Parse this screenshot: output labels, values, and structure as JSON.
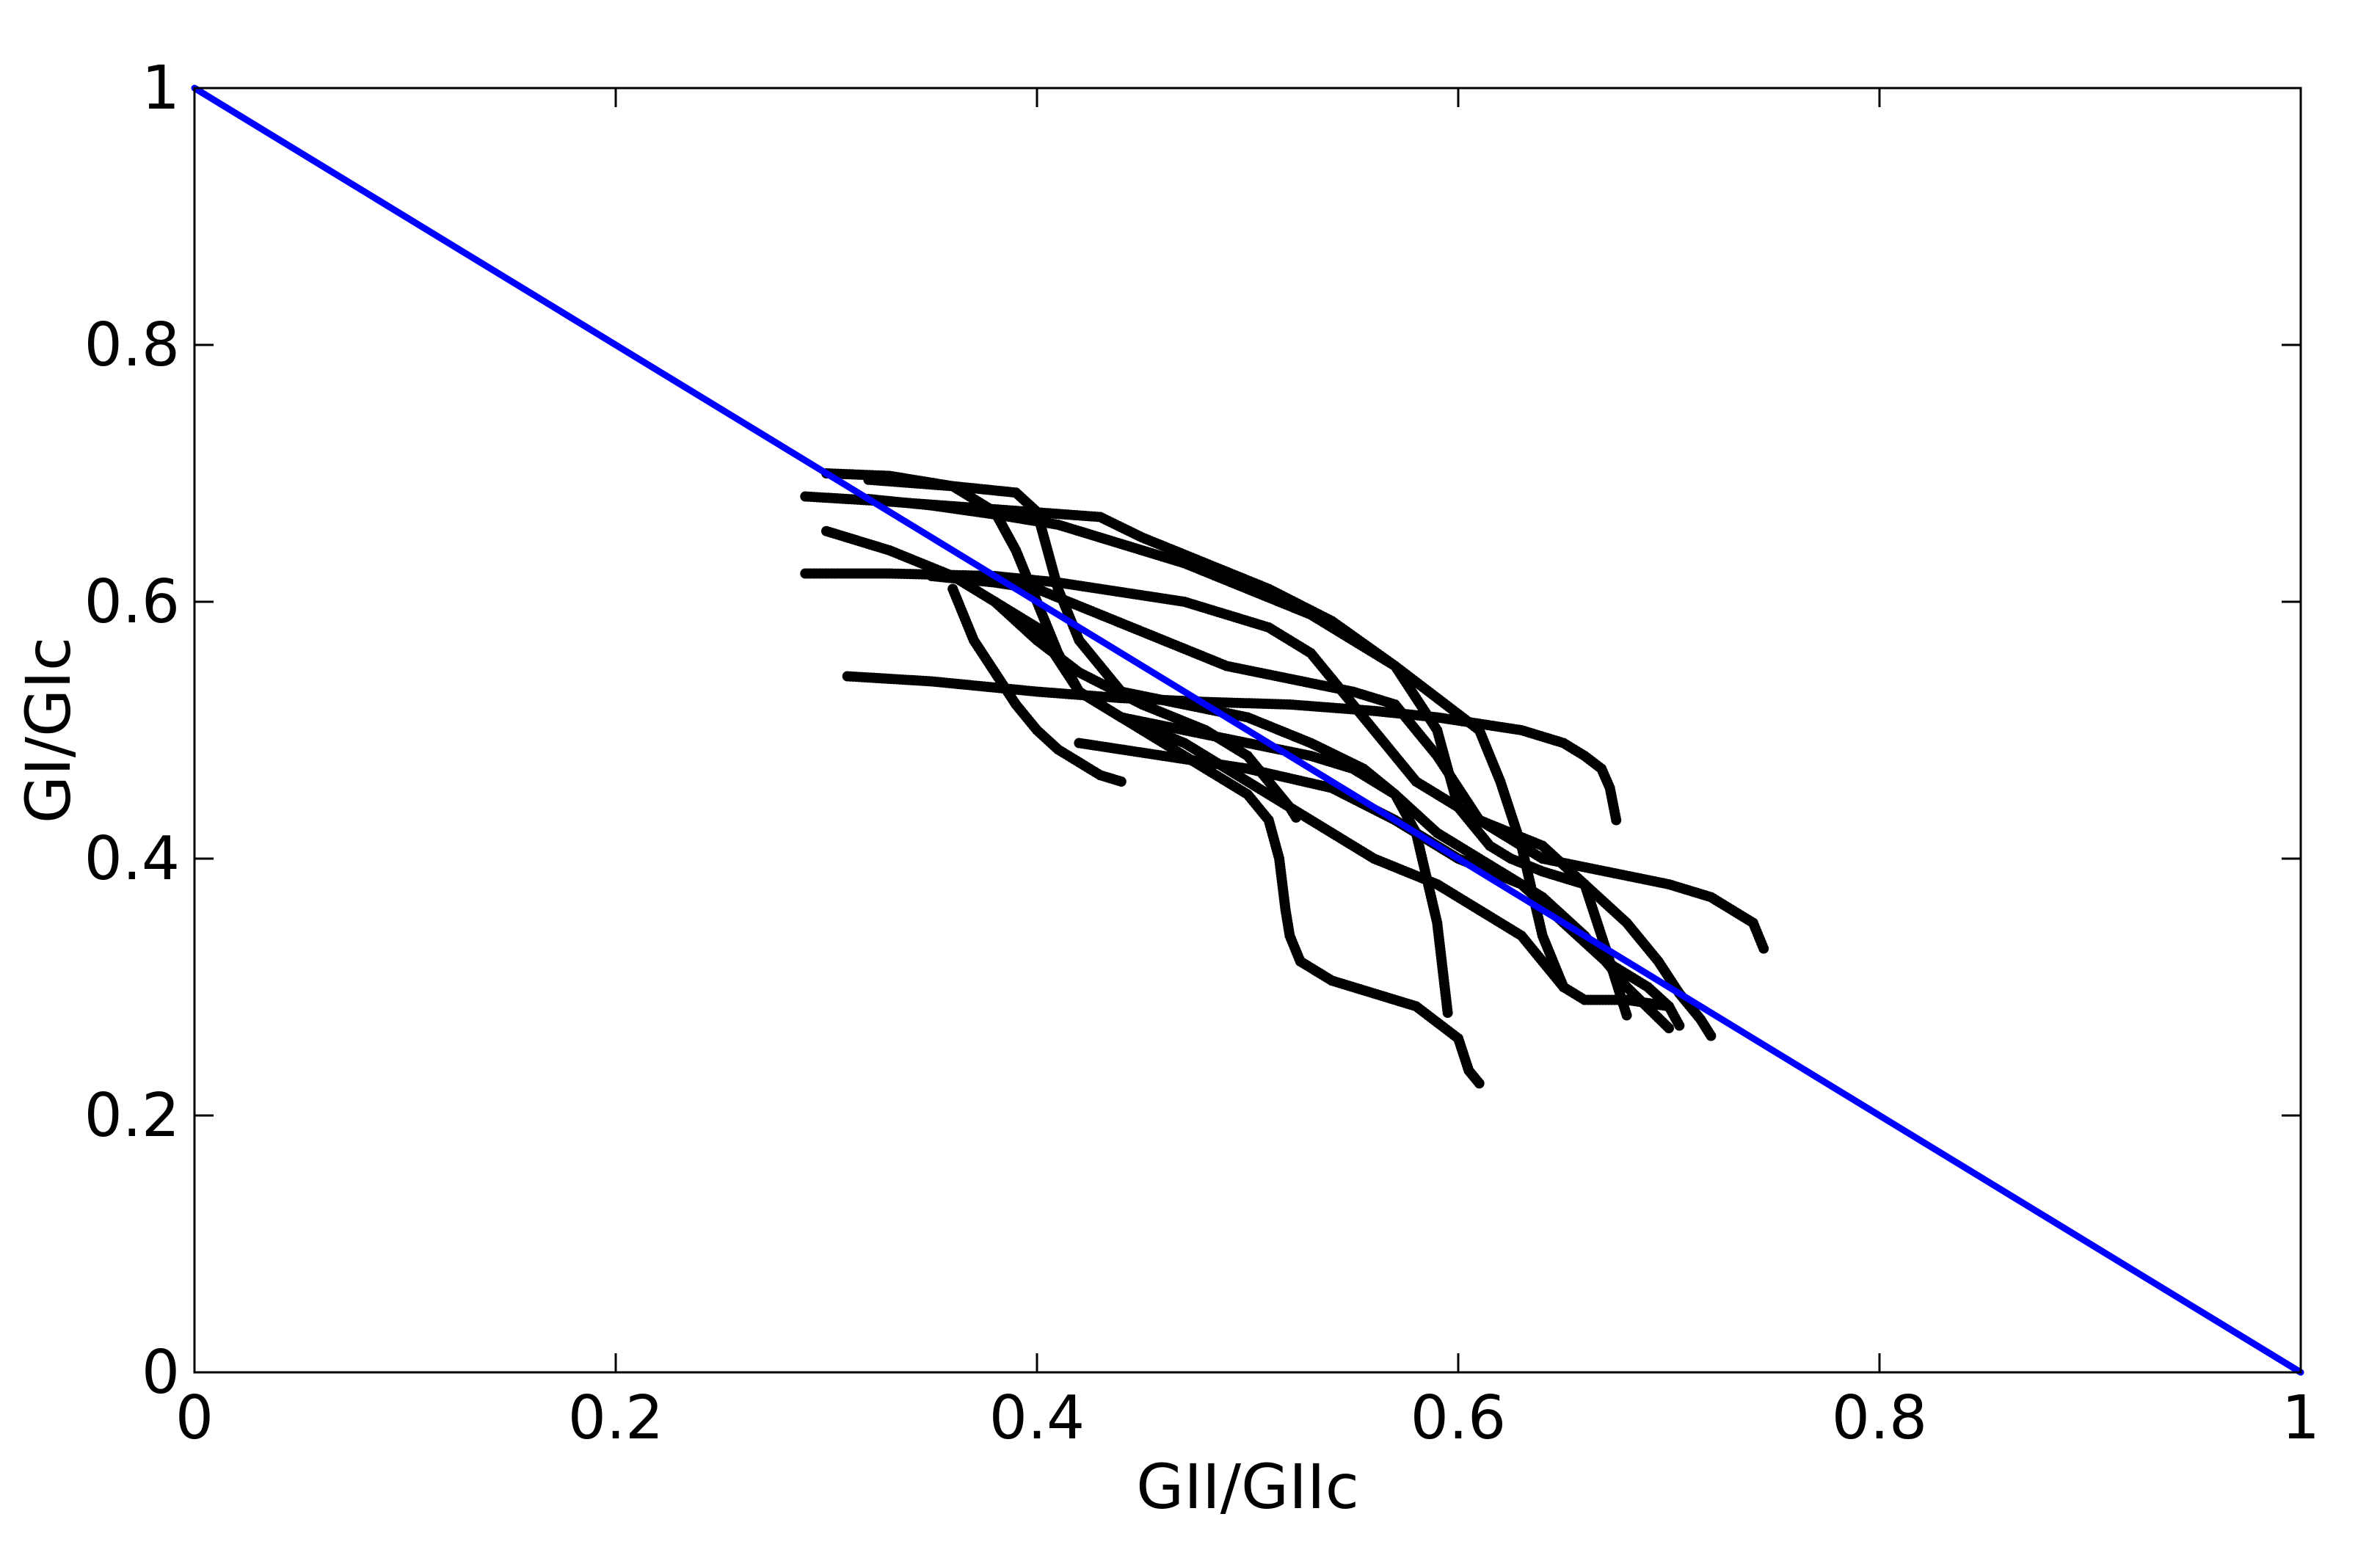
{
  "chart_data": {
    "type": "scatter",
    "title": "",
    "xlabel": "GII/GIIc",
    "ylabel": "GI/GIc",
    "xlim": [
      0,
      1
    ],
    "ylim": [
      0,
      1
    ],
    "x_ticks": [
      "0",
      "0.2",
      "0.4",
      "0.6",
      "0.8",
      "1"
    ],
    "y_ticks": [
      "0",
      "0.2",
      "0.4",
      "0.6",
      "0.8",
      "1"
    ],
    "grid": false,
    "legend": "none",
    "colors": {
      "reference_line": "#0000ff",
      "data_points": "#000000"
    },
    "reference_line": {
      "x": [
        0,
        1
      ],
      "y": [
        1,
        0
      ]
    },
    "series": [
      {
        "x": [
          0.29,
          0.33,
          0.38,
          0.43,
          0.45,
          0.48,
          0.51,
          0.54,
          0.57,
          0.59,
          0.6,
          0.615,
          0.625,
          0.64,
          0.66,
          0.68,
          0.695,
          0.705,
          0.715,
          0.72
        ],
        "y": [
          0.682,
          0.678,
          0.672,
          0.666,
          0.65,
          0.63,
          0.61,
          0.585,
          0.55,
          0.5,
          0.44,
          0.41,
          0.4,
          0.39,
          0.38,
          0.35,
          0.32,
          0.295,
          0.275,
          0.262
        ]
      },
      {
        "x": [
          0.3,
          0.33,
          0.36,
          0.38,
          0.39,
          0.4,
          0.41,
          0.42,
          0.44,
          0.47,
          0.5,
          0.53,
          0.55,
          0.57,
          0.59,
          0.61,
          0.62,
          0.64,
          0.66,
          0.68,
          0.7
        ],
        "y": [
          0.7,
          0.698,
          0.69,
          0.67,
          0.64,
          0.6,
          0.56,
          0.53,
          0.51,
          0.5,
          0.49,
          0.48,
          0.47,
          0.45,
          0.42,
          0.4,
          0.39,
          0.37,
          0.34,
          0.3,
          0.268
        ]
      },
      {
        "x": [
          0.29,
          0.33,
          0.38,
          0.41,
          0.43,
          0.45,
          0.47,
          0.49,
          0.51,
          0.53,
          0.54,
          0.56,
          0.58,
          0.61,
          0.64,
          0.66,
          0.67,
          0.68
        ],
        "y": [
          0.622,
          0.622,
          0.62,
          0.615,
          0.61,
          0.605,
          0.6,
          0.59,
          0.58,
          0.56,
          0.54,
          0.5,
          0.46,
          0.43,
          0.41,
          0.38,
          0.33,
          0.278
        ]
      },
      {
        "x": [
          0.3,
          0.33,
          0.36,
          0.38,
          0.4,
          0.42,
          0.45,
          0.48,
          0.5,
          0.51,
          0.515,
          0.518,
          0.52,
          0.525,
          0.54,
          0.58,
          0.6,
          0.605,
          0.61
        ],
        "y": [
          0.655,
          0.64,
          0.62,
          0.6,
          0.58,
          0.53,
          0.5,
          0.47,
          0.45,
          0.43,
          0.4,
          0.36,
          0.34,
          0.32,
          0.305,
          0.285,
          0.26,
          0.235,
          0.225
        ]
      },
      {
        "x": [
          0.32,
          0.36,
          0.39,
          0.4,
          0.405,
          0.41,
          0.42,
          0.44,
          0.47,
          0.5,
          0.53,
          0.555,
          0.57,
          0.58,
          0.59,
          0.595
        ],
        "y": [
          0.695,
          0.69,
          0.685,
          0.67,
          0.64,
          0.61,
          0.57,
          0.53,
          0.52,
          0.51,
          0.49,
          0.47,
          0.45,
          0.42,
          0.35,
          0.28
        ]
      },
      {
        "x": [
          0.31,
          0.35,
          0.4,
          0.44,
          0.48,
          0.52,
          0.56,
          0.59,
          0.61,
          0.63,
          0.65,
          0.66,
          0.668,
          0.672,
          0.675
        ],
        "y": [
          0.542,
          0.538,
          0.53,
          0.525,
          0.522,
          0.52,
          0.515,
          0.51,
          0.505,
          0.5,
          0.49,
          0.48,
          0.47,
          0.455,
          0.43
        ]
      },
      {
        "x": [
          0.32,
          0.35,
          0.38,
          0.41,
          0.44,
          0.47,
          0.5,
          0.53,
          0.55,
          0.57,
          0.59,
          0.61,
          0.62,
          0.63,
          0.64,
          0.65
        ],
        "y": [
          0.68,
          0.675,
          0.668,
          0.66,
          0.645,
          0.63,
          0.61,
          0.59,
          0.57,
          0.55,
          0.525,
          0.5,
          0.46,
          0.41,
          0.34,
          0.3
        ]
      },
      {
        "x": [
          0.35,
          0.38,
          0.4,
          0.43,
          0.46,
          0.49,
          0.52,
          0.55,
          0.57,
          0.59,
          0.61,
          0.64,
          0.67,
          0.7,
          0.72,
          0.74,
          0.745
        ],
        "y": [
          0.62,
          0.615,
          0.61,
          0.59,
          0.57,
          0.55,
          0.54,
          0.53,
          0.52,
          0.48,
          0.43,
          0.4,
          0.39,
          0.38,
          0.37,
          0.35,
          0.33
        ]
      },
      {
        "x": [
          0.36,
          0.37,
          0.38,
          0.39,
          0.4,
          0.41,
          0.42,
          0.43,
          0.44
        ],
        "y": [
          0.61,
          0.57,
          0.545,
          0.52,
          0.5,
          0.485,
          0.475,
          0.465,
          0.46
        ]
      },
      {
        "x": [
          0.38,
          0.4,
          0.42,
          0.45,
          0.48,
          0.5,
          0.51,
          0.515,
          0.52,
          0.523
        ],
        "y": [
          0.6,
          0.57,
          0.545,
          0.52,
          0.5,
          0.48,
          0.46,
          0.45,
          0.44,
          0.432
        ]
      },
      {
        "x": [
          0.42,
          0.46,
          0.5,
          0.54,
          0.57,
          0.6,
          0.63,
          0.65,
          0.67,
          0.69,
          0.7,
          0.705
        ],
        "y": [
          0.49,
          0.48,
          0.47,
          0.455,
          0.43,
          0.4,
          0.38,
          0.35,
          0.32,
          0.3,
          0.285,
          0.27
        ]
      },
      {
        "x": [
          0.44,
          0.47,
          0.5,
          0.53,
          0.56,
          0.59,
          0.61,
          0.63,
          0.64,
          0.65,
          0.66,
          0.68,
          0.7
        ],
        "y": [
          0.51,
          0.49,
          0.46,
          0.43,
          0.4,
          0.38,
          0.36,
          0.34,
          0.32,
          0.3,
          0.29,
          0.29,
          0.285
        ]
      }
    ]
  }
}
